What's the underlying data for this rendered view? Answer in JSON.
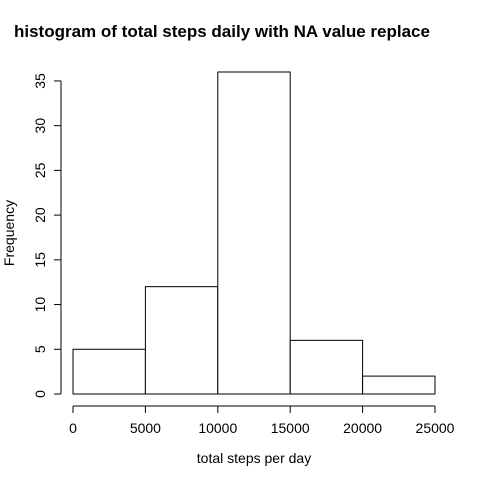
{
  "chart_data": {
    "type": "bar",
    "title": "histogram of total steps daily with NA value replace",
    "xlabel": "total steps per day",
    "ylabel": "Frequency",
    "bins": [
      {
        "from": 0,
        "to": 5000,
        "count": 5
      },
      {
        "from": 5000,
        "to": 10000,
        "count": 12
      },
      {
        "from": 10000,
        "to": 15000,
        "count": 36
      },
      {
        "from": 15000,
        "to": 20000,
        "count": 6
      },
      {
        "from": 20000,
        "to": 25000,
        "count": 2
      }
    ],
    "xlim": [
      0,
      25000
    ],
    "ylim": [
      0,
      36
    ],
    "x_ticks": [
      "0",
      "5000",
      "10000",
      "15000",
      "20000",
      "25000"
    ],
    "y_ticks": [
      "0",
      "5",
      "10",
      "15",
      "20",
      "25",
      "30",
      "35"
    ],
    "grid": false,
    "legend": "none",
    "colors": {
      "bar_fill": "#ffffff",
      "bar_stroke": "#000000",
      "axis": "#000000"
    }
  }
}
